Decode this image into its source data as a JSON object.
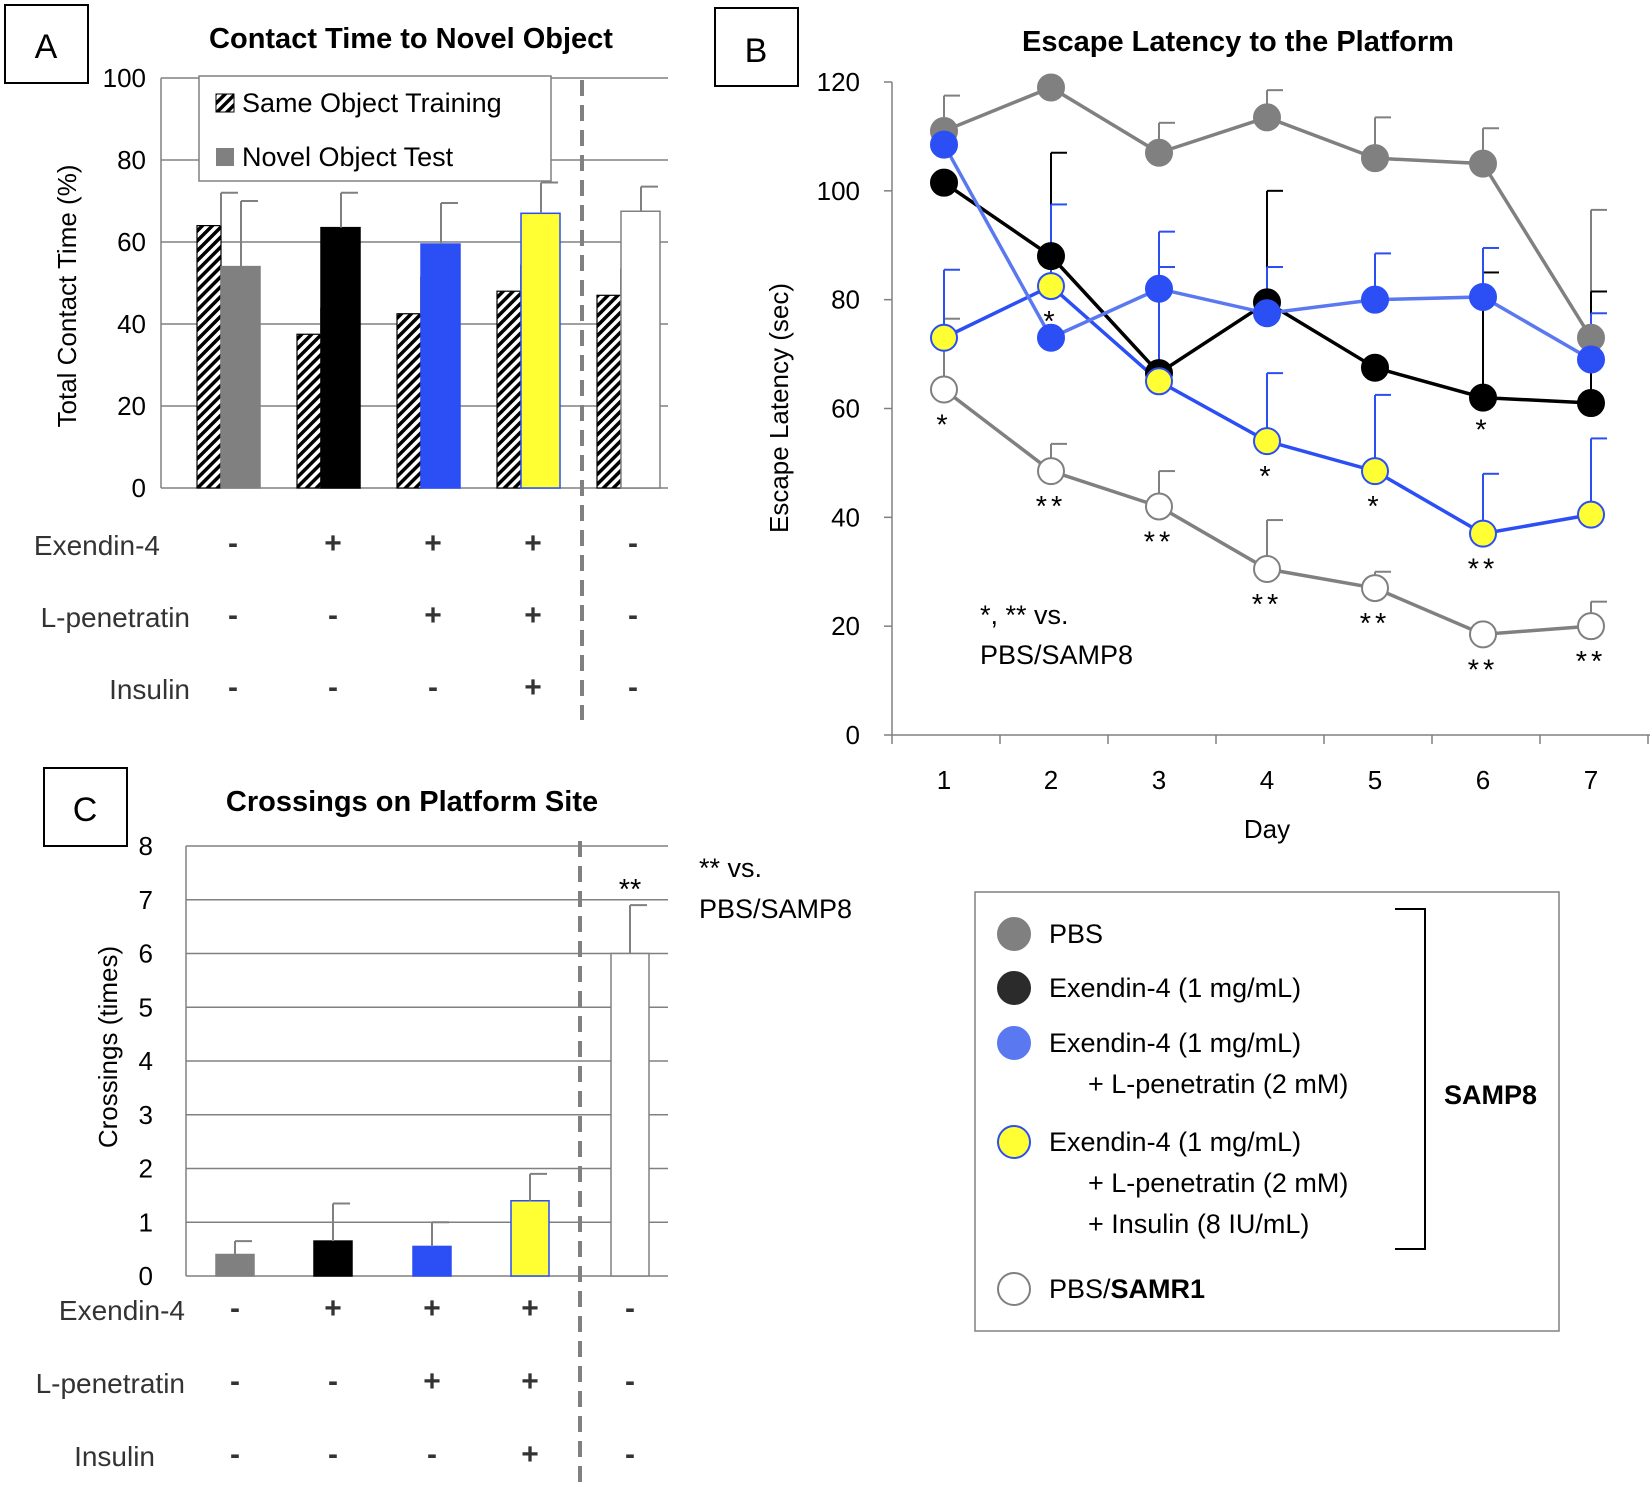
{
  "colors": {
    "pbs": "#808080",
    "ex4": "#000000",
    "ex4_lpen": "#2b4ef5",
    "ex4_lpen_ins": "#ffff33",
    "samr1": "#ffffff",
    "dashed": "#808080",
    "grid": "#808080",
    "blue_line": "#2b4ef5",
    "legend_blue": "#5a78f0"
  },
  "panels": {
    "a_letter": "A",
    "b_letter": "B",
    "c_letter": "C"
  },
  "treatments": {
    "row_labels": [
      "Exendin-4",
      "L-penetratin",
      "Insulin"
    ],
    "symbols": [
      [
        "-",
        "+",
        "+",
        "+",
        "-"
      ],
      [
        "-",
        "-",
        "+",
        "+",
        "-"
      ],
      [
        "-",
        "-",
        "-",
        "+",
        "-"
      ]
    ]
  },
  "chart_data": [
    {
      "type": "bar",
      "panel": "A",
      "title": "Contact Time to Novel Object",
      "ylabel": "Total Contact Time (%)",
      "ylim": [
        0,
        100
      ],
      "yticks": [
        "0",
        "20",
        "40",
        "60",
        "80",
        "100"
      ],
      "legend": [
        "Same Object Training",
        "Novel Object Test"
      ],
      "series": [
        {
          "name": "Same Object Training",
          "values": [
            64,
            37.5,
            42.5,
            48,
            47
          ],
          "errors": [
            8,
            6.5,
            9,
            6.5,
            6.5
          ]
        },
        {
          "name": "Novel Object Test",
          "values": [
            54,
            63.5,
            59.5,
            67,
            67.5
          ],
          "errors": [
            16,
            8.5,
            10,
            7.5,
            6
          ]
        }
      ]
    },
    {
      "type": "line",
      "panel": "B",
      "title": "Escape Latency to the Platform",
      "xlabel": "Day",
      "ylabel": "Escape Latency (sec)",
      "x": [
        1,
        2,
        3,
        4,
        5,
        6,
        7
      ],
      "xticks": [
        "1",
        "2",
        "3",
        "4",
        "5",
        "6",
        "7"
      ],
      "ylim": [
        0,
        120
      ],
      "yticks": [
        "0",
        "20",
        "40",
        "60",
        "80",
        "100",
        "120"
      ],
      "series": [
        {
          "name": "PBS",
          "values": [
            111,
            119,
            107,
            113.5,
            106,
            105,
            73
          ],
          "errors": [
            6.5,
            0,
            5.5,
            5,
            7.5,
            6.5,
            23.5
          ]
        },
        {
          "name": "Exendin-4 (1 mg/mL)",
          "values": [
            101.5,
            88,
            66.5,
            79.5,
            67.5,
            62,
            61
          ],
          "errors": [
            0,
            19,
            0,
            20.5,
            0,
            23,
            20.5
          ]
        },
        {
          "name": "Exendin-4 (1 mg/mL) + L-penetratin (2 mM)",
          "values": [
            108.5,
            73,
            82,
            77.5,
            80,
            80.5,
            69
          ],
          "errors": [
            0,
            0,
            10.5,
            8.5,
            8.5,
            9,
            8.5
          ]
        },
        {
          "name": "Exendin-4 (1 mg/mL) + L-penetratin (2 mM) + Insulin (8 IU/mL)",
          "values": [
            73,
            82.5,
            65,
            54,
            48.5,
            37,
            40.5
          ],
          "errors": [
            12.5,
            15,
            21,
            12.5,
            14,
            11,
            14
          ]
        },
        {
          "name": "PBS/SAMR1",
          "values": [
            63.5,
            48.5,
            42,
            30.5,
            27,
            18.5,
            20
          ],
          "errors": [
            13,
            5,
            6.5,
            9,
            3,
            0,
            4.5
          ]
        }
      ],
      "sig_labels": {
        "pbs_samr1": [
          "*",
          "**",
          "**",
          "**",
          "**",
          "**",
          "**"
        ],
        "ex4_lpen_ins": [
          "",
          "*",
          "",
          "*",
          "*",
          "**",
          ""
        ],
        "ex4": [
          "",
          "",
          "",
          "",
          "",
          "*",
          ""
        ]
      },
      "note": [
        "*, ** vs.",
        "PBS/SAMP8"
      ]
    },
    {
      "type": "bar",
      "panel": "C",
      "title": "Crossings on Platform Site",
      "ylabel": "Crossings (times)",
      "ylim": [
        0,
        8
      ],
      "yticks": [
        "0",
        "1",
        "2",
        "3",
        "4",
        "5",
        "6",
        "7",
        "8"
      ],
      "values": [
        0.4,
        0.65,
        0.55,
        1.4,
        6
      ],
      "errors": [
        0.25,
        0.7,
        0.45,
        0.5,
        0.9
      ],
      "sig": "**",
      "note": [
        "** vs.",
        "PBS/SAMP8"
      ]
    }
  ],
  "legend": {
    "entries": [
      {
        "lines": [
          "PBS"
        ],
        "key": "pbs"
      },
      {
        "lines": [
          "Exendin-4 (1 mg/mL)"
        ],
        "key": "ex4"
      },
      {
        "lines": [
          "Exendin-4 (1 mg/mL)",
          "+ L-penetratin (2 mM)"
        ],
        "key": "ex4_lpen"
      },
      {
        "lines": [
          "Exendin-4 (1 mg/mL)",
          "+ L-penetratin (2 mM)",
          "+ Insulin (8 IU/mL)"
        ],
        "key": "ex4_lpen_ins"
      }
    ],
    "samr1_prefix": "PBS/",
    "samr1_bold": "SAMR1",
    "group_label": "SAMP8"
  }
}
